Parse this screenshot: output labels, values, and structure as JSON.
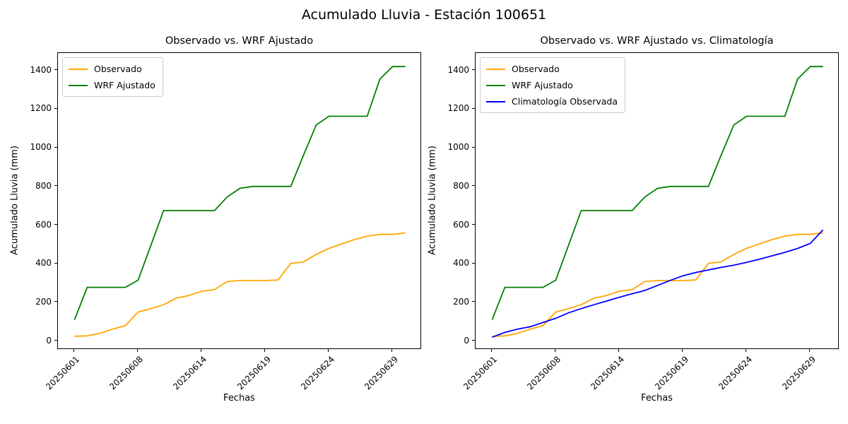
{
  "figure": {
    "title": "Acumulado Lluvia - Estación 100651",
    "background": "#ffffff",
    "text_color": "#000000"
  },
  "colors": {
    "observado": "#FFA500",
    "wrf_ajustado": "#008000",
    "climatologia": "#0000FF",
    "axes": "#000000",
    "legend_border": "#cccccc"
  },
  "chart_data": [
    {
      "type": "line",
      "title": "Observado vs. WRF Ajustado",
      "xlabel": "Fechas",
      "ylabel": "Acumulado Lluvia (mm)",
      "grid": false,
      "legend_position": "upper left",
      "n_points": 27,
      "x_tick_indices": [
        0,
        5,
        10,
        15,
        20,
        25
      ],
      "x_tick_labels": [
        "20250601",
        "20250608",
        "20250614",
        "20250619",
        "20250624",
        "20250629"
      ],
      "y_ticks": [
        0,
        200,
        400,
        600,
        800,
        1000,
        1200,
        1400
      ],
      "xlim": [
        -1.3,
        27.3
      ],
      "ylim": [
        -45,
        1490
      ],
      "series": [
        {
          "name": "Observado",
          "color": "#FFA500",
          "values": [
            25,
            27,
            40,
            62,
            80,
            150,
            168,
            188,
            222,
            236,
            258,
            266,
            308,
            313,
            313,
            313,
            316,
            402,
            410,
            448,
            480,
            503,
            525,
            543,
            552,
            552,
            560
          ]
        },
        {
          "name": "WRF Ajustado",
          "color": "#008000",
          "values": [
            110,
            278,
            278,
            278,
            278,
            315,
            495,
            675,
            675,
            675,
            675,
            675,
            745,
            790,
            800,
            800,
            800,
            800,
            962,
            1118,
            1163,
            1163,
            1163,
            1163,
            1355,
            1420,
            1420
          ]
        }
      ]
    },
    {
      "type": "line",
      "title": "Observado vs. WRF Ajustado vs. Climatología",
      "xlabel": "Fechas",
      "ylabel": "Acumulado Lluvia (mm)",
      "grid": false,
      "legend_position": "upper left",
      "n_points": 27,
      "x_tick_indices": [
        0,
        5,
        10,
        15,
        20,
        25
      ],
      "x_tick_labels": [
        "20250601",
        "20250608",
        "20250614",
        "20250619",
        "20250624",
        "20250629"
      ],
      "y_ticks": [
        0,
        200,
        400,
        600,
        800,
        1000,
        1200,
        1400
      ],
      "xlim": [
        -1.3,
        27.3
      ],
      "ylim": [
        -45,
        1490
      ],
      "series": [
        {
          "name": "Observado",
          "color": "#FFA500",
          "values": [
            25,
            27,
            40,
            62,
            80,
            150,
            168,
            188,
            222,
            236,
            258,
            266,
            308,
            313,
            313,
            313,
            316,
            402,
            410,
            448,
            480,
            503,
            525,
            543,
            552,
            552,
            560
          ]
        },
        {
          "name": "WRF Ajustado",
          "color": "#008000",
          "values": [
            110,
            278,
            278,
            278,
            278,
            315,
            495,
            675,
            675,
            675,
            675,
            675,
            745,
            790,
            800,
            800,
            800,
            800,
            962,
            1118,
            1163,
            1163,
            1163,
            1163,
            1355,
            1420,
            1420
          ]
        },
        {
          "name": "Climatología Observada",
          "color": "#0000FF",
          "values": [
            20,
            45,
            62,
            74,
            96,
            118,
            146,
            168,
            188,
            207,
            227,
            245,
            262,
            288,
            314,
            338,
            355,
            368,
            381,
            393,
            407,
            423,
            441,
            459,
            479,
            505,
            575
          ]
        }
      ]
    }
  ]
}
